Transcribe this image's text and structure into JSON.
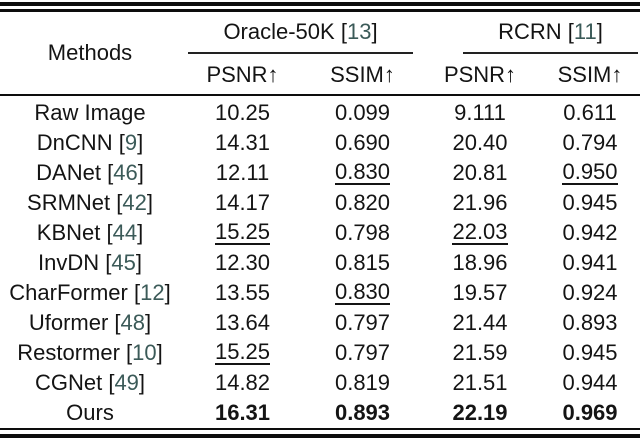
{
  "colors": {
    "text": "#141414",
    "citation": "#3b5a58",
    "rule": "#0d0d0d",
    "background": "#ffffff"
  },
  "table": {
    "methods_header": "Methods",
    "groups": [
      {
        "label": "Oracle-50K",
        "cite": "13"
      },
      {
        "label": "RCRN",
        "cite": "11"
      }
    ],
    "metric_headers": [
      "PSNR↑",
      "SSIM↑",
      "PSNR↑",
      "SSIM↑"
    ],
    "rows": [
      {
        "method": "Raw Image",
        "cite": null,
        "values": [
          {
            "text": "10.25",
            "style": "normal"
          },
          {
            "text": "0.099",
            "style": "normal"
          },
          {
            "text": "9.111",
            "style": "normal"
          },
          {
            "text": "0.611",
            "style": "normal"
          }
        ]
      },
      {
        "method": "DnCNN",
        "cite": "9",
        "values": [
          {
            "text": "14.31",
            "style": "normal"
          },
          {
            "text": "0.690",
            "style": "normal"
          },
          {
            "text": "20.40",
            "style": "normal"
          },
          {
            "text": "0.794",
            "style": "normal"
          }
        ]
      },
      {
        "method": "DANet",
        "cite": "46",
        "values": [
          {
            "text": "12.11",
            "style": "normal"
          },
          {
            "text": "0.830",
            "style": "underline"
          },
          {
            "text": "20.81",
            "style": "normal"
          },
          {
            "text": "0.950",
            "style": "underline"
          }
        ]
      },
      {
        "method": "SRMNet",
        "cite": "42",
        "values": [
          {
            "text": "14.17",
            "style": "normal"
          },
          {
            "text": "0.820",
            "style": "normal"
          },
          {
            "text": "21.96",
            "style": "normal"
          },
          {
            "text": "0.945",
            "style": "normal"
          }
        ]
      },
      {
        "method": "KBNet",
        "cite": "44",
        "values": [
          {
            "text": "15.25",
            "style": "underline"
          },
          {
            "text": "0.798",
            "style": "normal"
          },
          {
            "text": "22.03",
            "style": "underline"
          },
          {
            "text": "0.942",
            "style": "normal"
          }
        ]
      },
      {
        "method": "InvDN",
        "cite": "45",
        "values": [
          {
            "text": "12.30",
            "style": "normal"
          },
          {
            "text": "0.815",
            "style": "normal"
          },
          {
            "text": "18.96",
            "style": "normal"
          },
          {
            "text": "0.941",
            "style": "normal"
          }
        ]
      },
      {
        "method": "CharFormer",
        "cite": "12",
        "values": [
          {
            "text": "13.55",
            "style": "normal"
          },
          {
            "text": "0.830",
            "style": "underline"
          },
          {
            "text": "19.57",
            "style": "normal"
          },
          {
            "text": "0.924",
            "style": "normal"
          }
        ]
      },
      {
        "method": "Uformer",
        "cite": "48",
        "values": [
          {
            "text": "13.64",
            "style": "normal"
          },
          {
            "text": "0.797",
            "style": "normal"
          },
          {
            "text": "21.44",
            "style": "normal"
          },
          {
            "text": "0.893",
            "style": "normal"
          }
        ]
      },
      {
        "method": "Restormer",
        "cite": "10",
        "values": [
          {
            "text": "15.25",
            "style": "underline"
          },
          {
            "text": "0.797",
            "style": "normal"
          },
          {
            "text": "21.59",
            "style": "normal"
          },
          {
            "text": "0.945",
            "style": "normal"
          }
        ]
      },
      {
        "method": "CGNet",
        "cite": "49",
        "values": [
          {
            "text": "14.82",
            "style": "normal"
          },
          {
            "text": "0.819",
            "style": "normal"
          },
          {
            "text": "21.51",
            "style": "normal"
          },
          {
            "text": "0.944",
            "style": "normal"
          }
        ]
      },
      {
        "method": "Ours",
        "cite": null,
        "values": [
          {
            "text": "16.31",
            "style": "bold"
          },
          {
            "text": "0.893",
            "style": "bold"
          },
          {
            "text": "22.19",
            "style": "bold"
          },
          {
            "text": "0.969",
            "style": "bold"
          }
        ]
      }
    ]
  }
}
